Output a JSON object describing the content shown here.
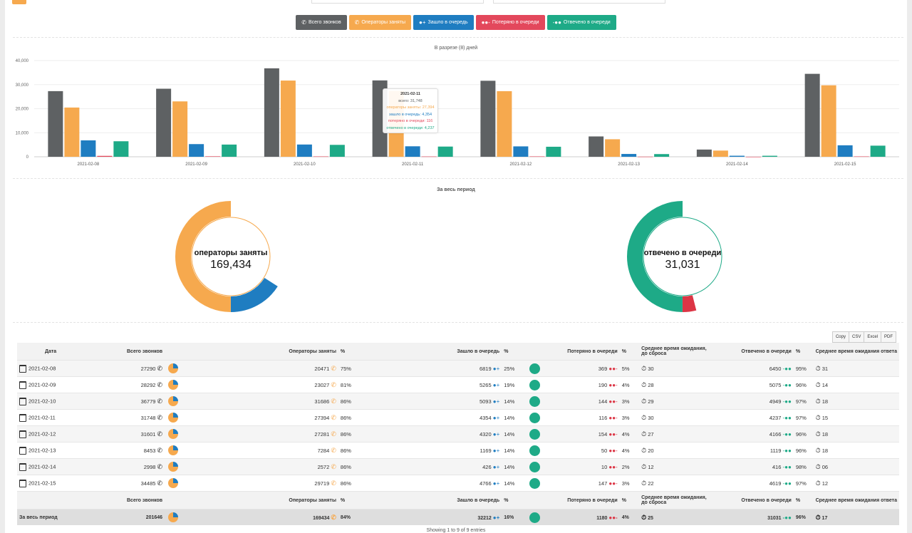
{
  "legend": [
    {
      "label": "Всего звонков",
      "color": "#5e6163",
      "icon": "phone-incoming-icon"
    },
    {
      "label": "Операторы заняты",
      "color": "#f6a94e",
      "icon": "phone-busy-icon"
    },
    {
      "label": "Зашло в очередь",
      "color": "#1f7dc1",
      "icon": "user-plus-icon"
    },
    {
      "label": "Потеряно в очереди",
      "color": "#e3485c",
      "icon": "users-minus-icon"
    },
    {
      "label": "Отвечено в очереди",
      "color": "#1eaa87",
      "icon": "users-check-icon"
    }
  ],
  "bar_title": "В разрезе (8) дней",
  "chart_data": {
    "type": "bar",
    "categories": [
      "2021-02-08",
      "2021-02-09",
      "2021-02-10",
      "2021-02-11",
      "2021-02-12",
      "2021-02-13",
      "2021-02-14",
      "2021-02-15"
    ],
    "series": [
      {
        "name": "всего",
        "color": "#5e6163",
        "values": [
          27290,
          28292,
          36779,
          31748,
          31601,
          8453,
          2998,
          34485
        ]
      },
      {
        "name": "операторы заняты",
        "color": "#f6a94e",
        "values": [
          20471,
          23027,
          31686,
          27394,
          27281,
          7284,
          2572,
          29719
        ]
      },
      {
        "name": "зашло в очередь",
        "color": "#1f7dc1",
        "values": [
          6819,
          5265,
          5093,
          4354,
          4320,
          1169,
          426,
          4766
        ]
      },
      {
        "name": "потеряно в очереди",
        "color": "#e3485c",
        "values": [
          369,
          190,
          144,
          116,
          154,
          50,
          10,
          147
        ]
      },
      {
        "name": "отвечено в очереди",
        "color": "#1eaa87",
        "values": [
          6450,
          5075,
          4949,
          4237,
          4166,
          1119,
          416,
          4619
        ]
      }
    ],
    "yticks": [
      "40,000",
      "30,000",
      "20,000",
      "10,000",
      "0"
    ],
    "ylim": [
      0,
      40000
    ]
  },
  "tooltip": {
    "date": "2021-02-11",
    "lines": [
      "всего: 31,748",
      "операторы заняты: 27,394",
      "зашло в очередь: 4,354",
      "потеряно в очереди: 116",
      "отвечено в очереди: 4,237"
    ]
  },
  "period_title": "За весь период",
  "donut1": {
    "label": "операторы заняты",
    "value": "169,434",
    "fraction_main": 0.84,
    "main_color": "#f6a94e",
    "other_color": "#1f7dc1"
  },
  "donut2": {
    "label": "отвечено в очереди",
    "value": "31,031",
    "fraction_main": 0.96,
    "main_color": "#1eaa87",
    "other_color": "#dc3545"
  },
  "exports": [
    "Copy",
    "CSV",
    "Excel",
    "PDF"
  ],
  "columns": [
    "Дата",
    "Всего звонков",
    "Операторы заняты",
    "%",
    "Зашло в очередь",
    "%",
    "Потеряно в очереди",
    "%",
    "Среднее время ожидания, до сброса",
    "Отвечено в очереди",
    "%",
    "Среднее время ожидания ответа"
  ],
  "rows": [
    {
      "date": "2021-02-08",
      "total": "27290",
      "busy": "20471",
      "busy_pct": "75%",
      "queued": "6819",
      "queued_pct": "25%",
      "lost": "369",
      "lost_pct": "5%",
      "wait_lost": "30",
      "answered": "6450",
      "answered_pct": "95%",
      "wait_ans": "31"
    },
    {
      "date": "2021-02-09",
      "total": "28292",
      "busy": "23027",
      "busy_pct": "81%",
      "queued": "5265",
      "queued_pct": "19%",
      "lost": "190",
      "lost_pct": "4%",
      "wait_lost": "28",
      "answered": "5075",
      "answered_pct": "96%",
      "wait_ans": "14"
    },
    {
      "date": "2021-02-10",
      "total": "36779",
      "busy": "31686",
      "busy_pct": "86%",
      "queued": "5093",
      "queued_pct": "14%",
      "lost": "144",
      "lost_pct": "3%",
      "wait_lost": "29",
      "answered": "4949",
      "answered_pct": "97%",
      "wait_ans": "18"
    },
    {
      "date": "2021-02-11",
      "total": "31748",
      "busy": "27394",
      "busy_pct": "86%",
      "queued": "4354",
      "queued_pct": "14%",
      "lost": "116",
      "lost_pct": "3%",
      "wait_lost": "30",
      "answered": "4237",
      "answered_pct": "97%",
      "wait_ans": "15"
    },
    {
      "date": "2021-02-12",
      "total": "31601",
      "busy": "27281",
      "busy_pct": "86%",
      "queued": "4320",
      "queued_pct": "14%",
      "lost": "154",
      "lost_pct": "4%",
      "wait_lost": "27",
      "answered": "4166",
      "answered_pct": "96%",
      "wait_ans": "18"
    },
    {
      "date": "2021-02-13",
      "total": "8453",
      "busy": "7284",
      "busy_pct": "86%",
      "queued": "1169",
      "queued_pct": "14%",
      "lost": "50",
      "lost_pct": "4%",
      "wait_lost": "20",
      "answered": "1119",
      "answered_pct": "96%",
      "wait_ans": "18"
    },
    {
      "date": "2021-02-14",
      "total": "2998",
      "busy": "2572",
      "busy_pct": "86%",
      "queued": "426",
      "queued_pct": "14%",
      "lost": "10",
      "lost_pct": "2%",
      "wait_lost": "12",
      "answered": "416",
      "answered_pct": "98%",
      "wait_ans": "06"
    },
    {
      "date": "2021-02-15",
      "total": "34485",
      "busy": "29719",
      "busy_pct": "86%",
      "queued": "4766",
      "queued_pct": "14%",
      "lost": "147",
      "lost_pct": "3%",
      "wait_lost": "22",
      "answered": "4619",
      "answered_pct": "97%",
      "wait_ans": "12"
    }
  ],
  "footer_header": {
    "total": "Всего звонков",
    "busy": "Операторы заняты",
    "busy_pct": "%",
    "queued": "Зашло в очередь",
    "queued_pct": "%",
    "lost": "Потеряно в очереди",
    "lost_pct": "%",
    "wait_lost": "Среднее время ожидания, до сброса",
    "answered": "Отвечено в очереди",
    "answered_pct": "%",
    "wait_ans": "Среднее время ожидания ответа"
  },
  "summary": {
    "label": "За весь период",
    "total": "201646",
    "busy": "169434",
    "busy_pct": "84%",
    "queued": "32212",
    "queued_pct": "16%",
    "lost": "1180",
    "lost_pct": "4%",
    "wait_lost": "25",
    "answered": "31031",
    "answered_pct": "96%",
    "wait_ans": "17"
  },
  "info": "Showing 1 to 9 of 9 entries"
}
